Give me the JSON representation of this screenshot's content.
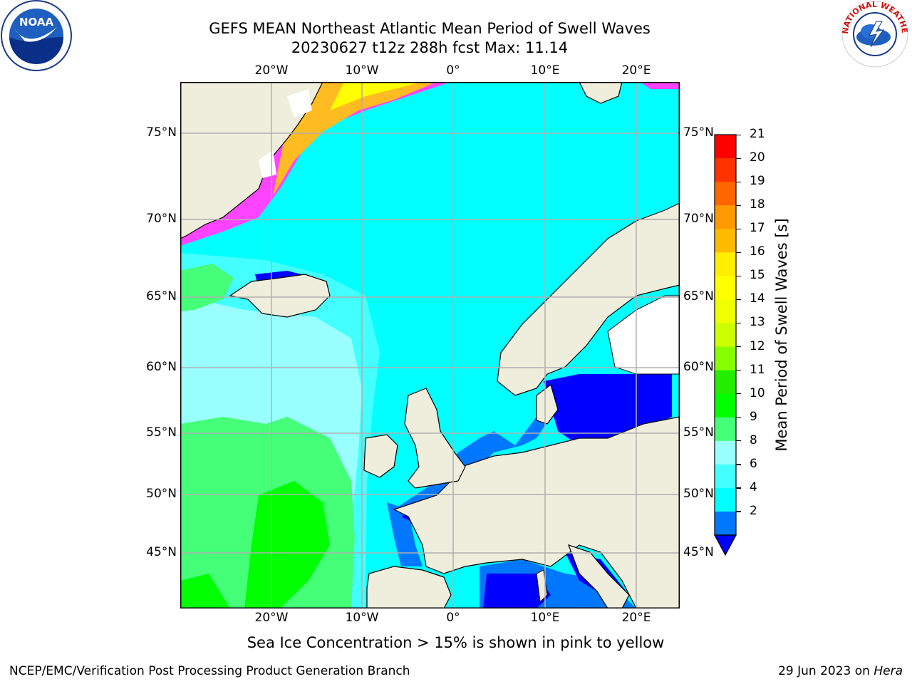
{
  "title": {
    "line1": "GEFS MEAN Northeast Atlantic Mean Period of Swell Waves",
    "line2": "20230627 t12z 288h fcst   Max: 11.14"
  },
  "map": {
    "lon_ticks": [
      "20°W",
      "10°W",
      "0°",
      "10°E",
      "20°E"
    ],
    "lat_ticks": [
      "75°N",
      "70°N",
      "65°N",
      "60°N",
      "55°N",
      "50°N",
      "45°N"
    ],
    "colors": {
      "land": "#efeddc",
      "ocean_main": "#00ffff",
      "ocean_light": "#44ffff",
      "ocean_pale": "#99ffff",
      "green_light": "#44ff77",
      "green": "#00ff00",
      "blue": "#0077ff",
      "blue_dark": "#0000ff",
      "ice_pink": "#ff44ff",
      "ice_orange": "#ffbb22",
      "ice_yellow": "#ffff00",
      "gridline": "#b0b0b0"
    }
  },
  "colorbar": {
    "label": "Mean Period of Swell Waves [s]",
    "ticks": [
      "21",
      "20",
      "19",
      "18",
      "17",
      "16",
      "15",
      "14",
      "13",
      "12",
      "11",
      "10",
      "9",
      "8",
      "6",
      "4",
      "2"
    ],
    "colors": [
      "#ff0000",
      "#ff3300",
      "#ff6600",
      "#ff9900",
      "#ffbb00",
      "#ffee00",
      "#ffff00",
      "#eeff00",
      "#ccff00",
      "#88ff00",
      "#22ee00",
      "#00ff00",
      "#44ff77",
      "#99ffff",
      "#44ffff",
      "#00ffff",
      "#0077ff",
      "#0000ff"
    ]
  },
  "note": "Sea Ice Concentration > 15% is shown in pink to yellow",
  "footer": {
    "left": "NCEP/EMC/Verification Post Processing Product Generation Branch",
    "date": "29 Jun 2023 on ",
    "machine": "Hera"
  },
  "logos": {
    "noaa_text": "NOAA",
    "nws_text": "NATIONAL WEATHER SERVICE"
  }
}
